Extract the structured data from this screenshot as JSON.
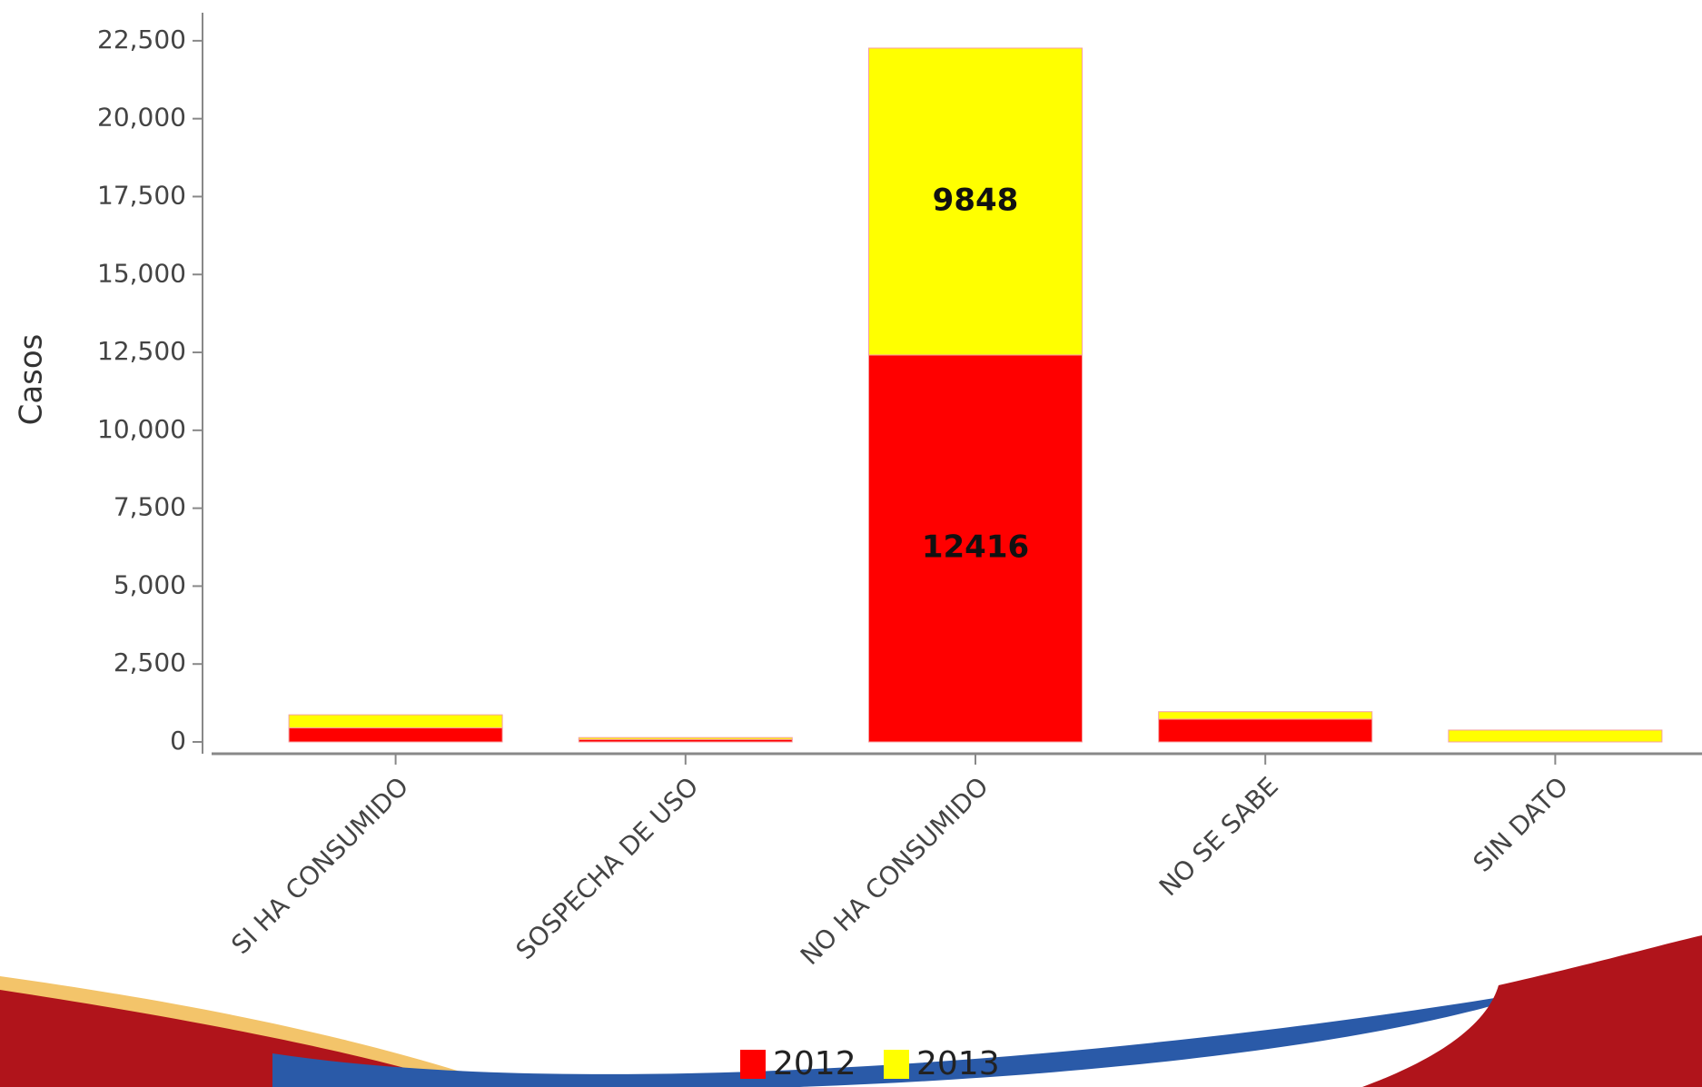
{
  "chart_data": {
    "type": "stacked_bar",
    "y_label": "Casos",
    "categories": [
      "SI HA CONSUMIDO",
      "SOSPECHA DE USO",
      "NO HA CONSUMIDO",
      "NO SE SABE",
      "SIN DATO"
    ],
    "series": [
      {
        "name": "2012",
        "color": "#ff0000",
        "values": [
          450,
          80,
          12416,
          730,
          0
        ]
      },
      {
        "name": "2013",
        "color": "#ffff00",
        "values": [
          420,
          60,
          9848,
          240,
          380
        ]
      }
    ],
    "ylim": [
      0,
      23400
    ],
    "yticks": [
      0,
      {
        "value": 2500,
        "label": "2,500"
      },
      {
        "value": 5000,
        "label": "5,000"
      },
      {
        "value": 7500,
        "label": "7,500"
      },
      {
        "value": 10000,
        "label": "10,000"
      },
      {
        "value": 12500,
        "label": "12,500"
      },
      {
        "value": 15000,
        "label": "15,000"
      },
      {
        "value": 17500,
        "label": "17,500"
      },
      {
        "value": 20000,
        "label": "20,000"
      },
      {
        "value": 22500,
        "label": "22,500"
      }
    ]
  }
}
